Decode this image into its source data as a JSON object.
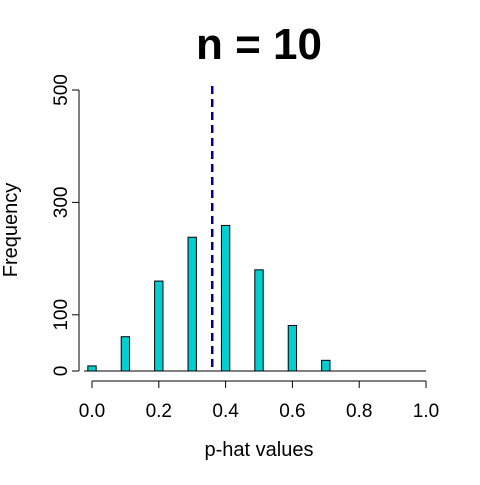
{
  "chart_data": {
    "type": "bar",
    "title": "n =  10",
    "xlabel": "p-hat values",
    "ylabel": "Frequency",
    "xlim": [
      0.0,
      1.0
    ],
    "ylim": [
      0,
      500
    ],
    "x_ticks": [
      0.0,
      0.2,
      0.4,
      0.6,
      0.8,
      1.0
    ],
    "x_tick_labels": [
      "0.0",
      "0.2",
      "0.4",
      "0.6",
      "0.8",
      "1.0"
    ],
    "y_ticks": [
      0,
      100,
      300,
      500
    ],
    "y_tick_labels": [
      "0",
      "100",
      "300",
      "500"
    ],
    "categories": [
      "0.0",
      "0.1",
      "0.2",
      "0.3",
      "0.4",
      "0.5",
      "0.6",
      "0.7"
    ],
    "x": [
      0.0,
      0.1,
      0.2,
      0.3,
      0.4,
      0.5,
      0.6,
      0.7
    ],
    "values": [
      9,
      61,
      160,
      238,
      259,
      180,
      81,
      19
    ],
    "bar_width": 0.025,
    "reference_line": {
      "x": 0.36,
      "style": "dashed",
      "color": "#00008b"
    },
    "bar_color": "#00ced1",
    "grid": false,
    "legend": "none"
  }
}
